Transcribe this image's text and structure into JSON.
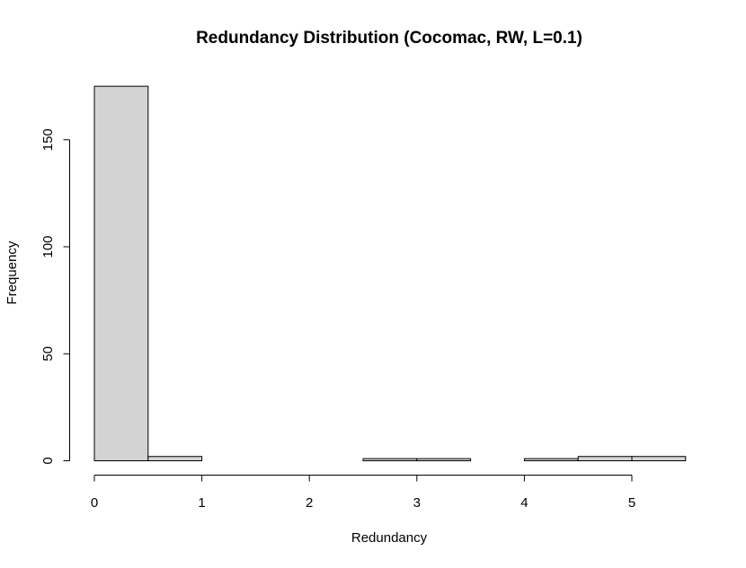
{
  "chart_data": {
    "type": "bar",
    "title": "Redundancy Distribution (Cocomac, RW, L=0.1)",
    "xlabel": "Redundancy",
    "ylabel": "Frequency",
    "bin_width": 0.5,
    "bins": [
      {
        "start": 0.0,
        "end": 0.5,
        "count": 175
      },
      {
        "start": 0.5,
        "end": 1.0,
        "count": 2
      },
      {
        "start": 1.0,
        "end": 1.5,
        "count": 0
      },
      {
        "start": 1.5,
        "end": 2.0,
        "count": 0
      },
      {
        "start": 2.0,
        "end": 2.5,
        "count": 0
      },
      {
        "start": 2.5,
        "end": 3.0,
        "count": 1
      },
      {
        "start": 3.0,
        "end": 3.5,
        "count": 1
      },
      {
        "start": 3.5,
        "end": 4.0,
        "count": 0
      },
      {
        "start": 4.0,
        "end": 4.5,
        "count": 1
      },
      {
        "start": 4.5,
        "end": 5.0,
        "count": 2
      },
      {
        "start": 5.0,
        "end": 5.5,
        "count": 2
      }
    ],
    "x_ticks": [
      "0",
      "1",
      "2",
      "3",
      "4",
      "5"
    ],
    "y_ticks": [
      "0",
      "50",
      "100",
      "150"
    ],
    "xlim": [
      0,
      5.5
    ],
    "ylim": [
      0,
      175
    ],
    "grid": false,
    "bar_fill": "#d3d3d3",
    "bar_stroke": "#000000"
  }
}
